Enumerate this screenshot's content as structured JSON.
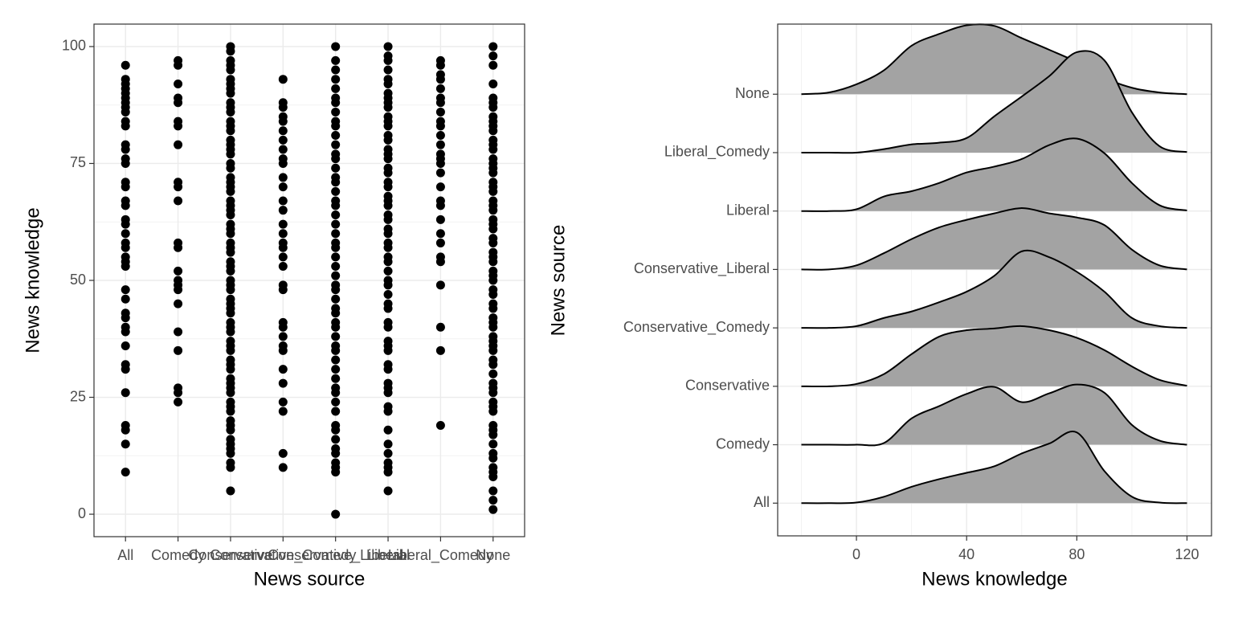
{
  "chart_data": [
    {
      "type": "strip",
      "x_label": "News source",
      "y_label": "News knowledge",
      "categories": [
        "All",
        "Comedy",
        "Conservative",
        "Conservative_Comedy",
        "Conservative_Liberal",
        "Liberal",
        "Liberal_Comedy",
        "None"
      ],
      "values": [
        [
          96,
          93,
          92,
          91,
          90,
          89,
          88,
          87,
          86,
          84,
          83,
          79,
          78,
          76,
          75,
          71,
          70,
          67,
          66,
          63,
          62,
          60,
          58,
          57,
          55,
          54,
          53,
          48,
          46,
          43,
          42,
          40,
          39,
          36,
          32,
          31,
          26,
          19,
          18,
          15,
          9
        ],
        [
          97,
          96,
          92,
          89,
          88,
          84,
          83,
          79,
          71,
          70,
          67,
          58,
          57,
          52,
          50,
          49,
          48,
          45,
          39,
          35,
          27,
          26,
          24
        ],
        [
          100,
          99,
          97,
          96,
          95,
          93,
          92,
          91,
          90,
          88,
          87,
          86,
          84,
          83,
          82,
          80,
          79,
          78,
          77,
          75,
          74,
          72,
          71,
          70,
          69,
          67,
          66,
          65,
          64,
          62,
          61,
          60,
          58,
          57,
          56,
          54,
          53,
          52,
          50,
          49,
          48,
          46,
          45,
          44,
          43,
          41,
          40,
          39,
          37,
          36,
          35,
          33,
          32,
          31,
          29,
          28,
          27,
          26,
          24,
          23,
          22,
          20,
          19,
          18,
          16,
          15,
          14,
          13,
          11,
          10,
          5
        ],
        [
          93,
          88,
          87,
          85,
          84,
          82,
          80,
          78,
          76,
          75,
          72,
          70,
          67,
          65,
          62,
          60,
          58,
          57,
          55,
          53,
          49,
          48,
          41,
          40,
          38,
          36,
          35,
          31,
          28,
          24,
          22,
          13,
          10
        ],
        [
          100,
          97,
          95,
          93,
          91,
          89,
          88,
          86,
          84,
          83,
          81,
          79,
          77,
          76,
          74,
          72,
          71,
          69,
          67,
          66,
          64,
          62,
          60,
          58,
          57,
          55,
          53,
          51,
          49,
          48,
          46,
          44,
          43,
          41,
          40,
          38,
          36,
          35,
          33,
          31,
          29,
          27,
          26,
          24,
          22,
          19,
          18,
          16,
          14,
          13,
          11,
          10,
          9,
          0
        ],
        [
          100,
          98,
          97,
          95,
          93,
          92,
          90,
          89,
          88,
          87,
          85,
          84,
          83,
          81,
          80,
          78,
          77,
          76,
          74,
          73,
          71,
          70,
          68,
          67,
          66,
          64,
          63,
          61,
          60,
          58,
          57,
          55,
          54,
          52,
          50,
          49,
          47,
          45,
          44,
          41,
          40,
          37,
          36,
          35,
          32,
          31,
          28,
          27,
          26,
          23,
          22,
          18,
          15,
          13,
          11,
          10,
          9,
          5
        ],
        [
          97,
          96,
          94,
          93,
          91,
          89,
          88,
          86,
          84,
          83,
          81,
          79,
          77,
          76,
          75,
          73,
          70,
          67,
          66,
          63,
          60,
          58,
          55,
          54,
          49,
          40,
          35,
          19
        ],
        [
          100,
          98,
          96,
          92,
          89,
          88,
          87,
          85,
          84,
          83,
          82,
          80,
          79,
          78,
          76,
          75,
          74,
          73,
          71,
          70,
          69,
          67,
          66,
          65,
          63,
          62,
          61,
          59,
          58,
          56,
          55,
          54,
          52,
          51,
          50,
          48,
          47,
          45,
          44,
          42,
          41,
          40,
          38,
          37,
          36,
          35,
          33,
          32,
          30,
          28,
          27,
          26,
          24,
          23,
          22,
          19,
          18,
          17,
          15,
          13,
          12,
          10,
          9,
          8,
          5,
          3,
          1
        ]
      ],
      "color": "#000000",
      "ylim": [
        -4.8,
        104.8
      ],
      "yticks": [
        0,
        25,
        50,
        75,
        100
      ],
      "grid": true
    },
    {
      "type": "ridgeline",
      "x_label": "News knowledge",
      "y_label": "News source",
      "x": [
        -20,
        -10,
        0,
        10,
        20,
        30,
        40,
        50,
        60,
        70,
        80,
        90,
        100,
        110,
        120
      ],
      "series": [
        {
          "name": "All",
          "values": [
            0,
            0,
            0.01,
            0.11,
            0.28,
            0.41,
            0.52,
            0.63,
            0.85,
            1.02,
            1.21,
            0.55,
            0.11,
            0.01,
            0
          ]
        },
        {
          "name": "Comedy",
          "values": [
            0,
            0,
            0,
            0.03,
            0.45,
            0.66,
            0.87,
            0.99,
            0.73,
            0.88,
            1.03,
            0.89,
            0.34,
            0.07,
            0
          ]
        },
        {
          "name": "Conservative",
          "values": [
            0,
            0,
            0.04,
            0.21,
            0.55,
            0.85,
            0.96,
            0.99,
            1.03,
            0.96,
            0.83,
            0.62,
            0.34,
            0.11,
            0.01
          ]
        },
        {
          "name": "Conservative_Comedy",
          "values": [
            0,
            0,
            0.03,
            0.17,
            0.28,
            0.44,
            0.62,
            0.89,
            1.31,
            1.21,
            0.96,
            0.62,
            0.17,
            0.03,
            0
          ]
        },
        {
          "name": "Conservative_Liberal",
          "values": [
            0,
            0,
            0.07,
            0.28,
            0.52,
            0.72,
            0.85,
            0.96,
            1.05,
            0.96,
            0.89,
            0.76,
            0.34,
            0.07,
            0
          ]
        },
        {
          "name": "Liberal",
          "values": [
            0,
            0,
            0.03,
            0.25,
            0.34,
            0.48,
            0.66,
            0.76,
            0.89,
            1.13,
            1.24,
            0.99,
            0.48,
            0.1,
            0.01
          ]
        },
        {
          "name": "Liberal_Comedy",
          "values": [
            0,
            0,
            0,
            0.06,
            0.14,
            0.17,
            0.25,
            0.62,
            0.96,
            1.31,
            1.72,
            1.58,
            0.69,
            0.11,
            0.01
          ]
        },
        {
          "name": "None",
          "values": [
            0,
            0.03,
            0.17,
            0.41,
            0.83,
            1.03,
            1.18,
            1.17,
            0.96,
            0.76,
            0.55,
            0.28,
            0.11,
            0.03,
            0
          ]
        }
      ],
      "fill": "#a3a3a3",
      "line_color": "#000000",
      "xlim": [
        -28.6,
        128.9
      ],
      "xticks": [
        0,
        40,
        80,
        120
      ],
      "ylim": [
        -0.56,
        8.2
      ],
      "grid": true
    }
  ]
}
